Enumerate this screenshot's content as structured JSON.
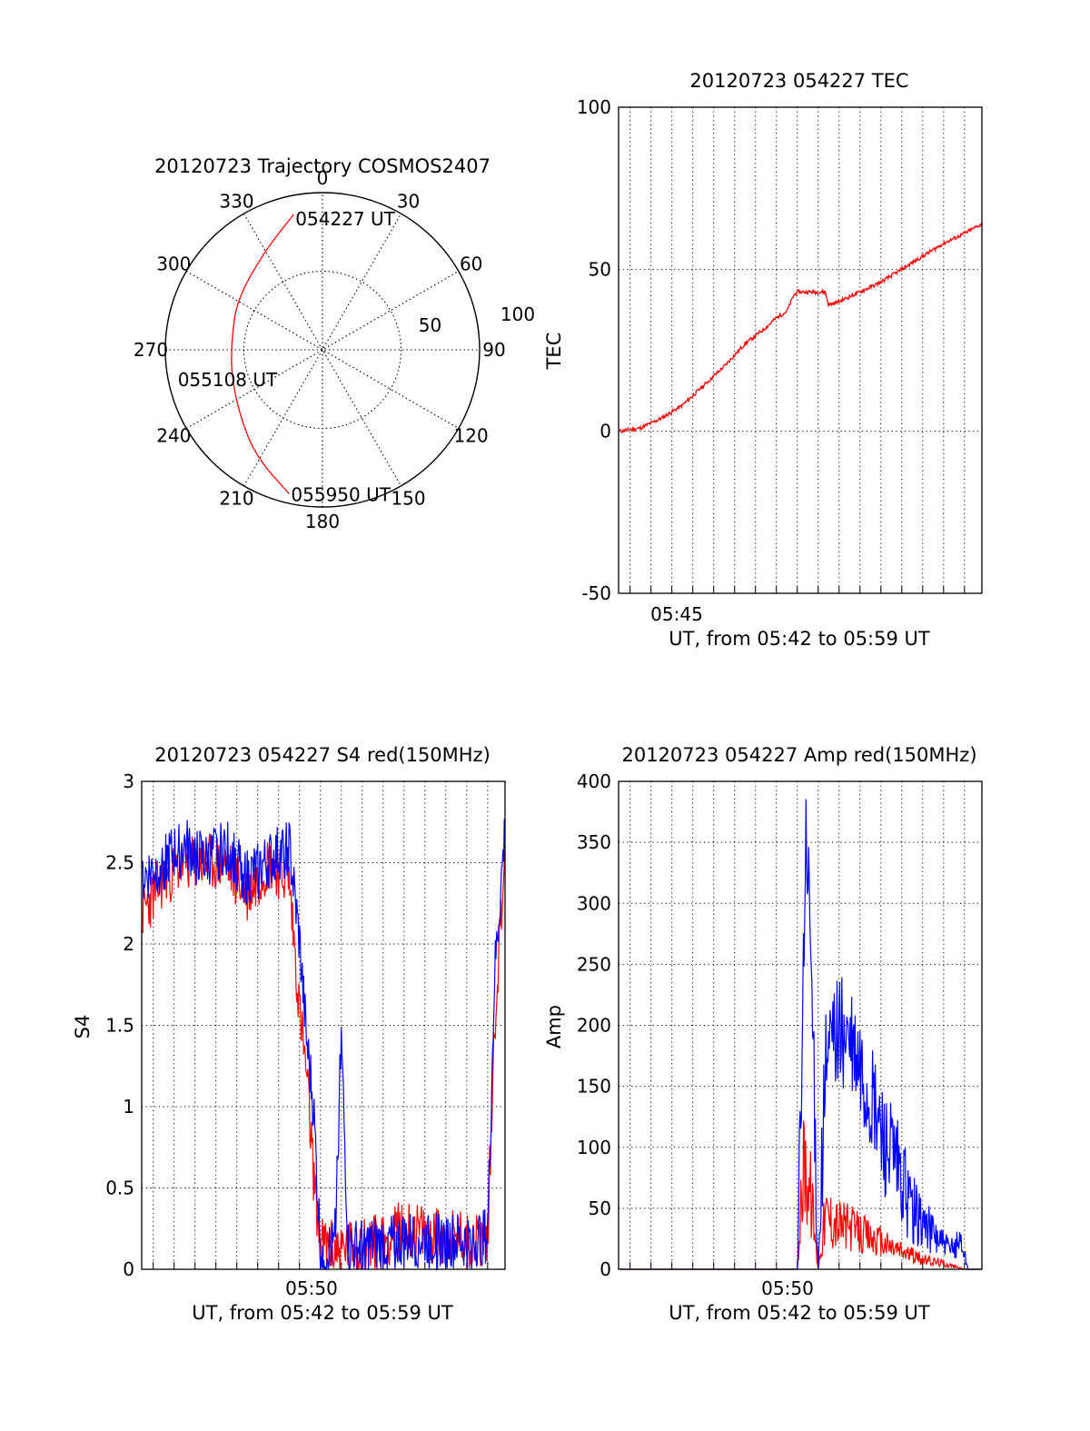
{
  "chart_data": [
    {
      "type": "polar",
      "title": "20120723 Trajectory COSMOS2407",
      "angle_labels": [
        "0",
        "30",
        "60",
        "90",
        "120",
        "150",
        "180",
        "210",
        "240",
        "270",
        "300",
        "330"
      ],
      "radial_labels": [
        "50",
        "100"
      ],
      "trajectory": {
        "color": "#ff0000",
        "points": [
          {
            "az": 348,
            "zen": 88,
            "label": "054227 UT"
          },
          {
            "az": 330,
            "zen": 73
          },
          {
            "az": 300,
            "zen": 63
          },
          {
            "az": 275,
            "zen": 58
          },
          {
            "az": 255,
            "zen": 60,
            "label": "055108 UT"
          },
          {
            "az": 232,
            "zen": 67
          },
          {
            "az": 212,
            "zen": 80
          },
          {
            "az": 193,
            "zen": 94,
            "label": "055950 UT"
          }
        ]
      },
      "time_labels": [
        "054227 UT",
        "055108 UT",
        "055950 UT"
      ]
    },
    {
      "type": "line",
      "title": "20120723 054227 TEC",
      "ylabel": "TEC",
      "xlabel": "UT, from 05:42 to 05:59 UT",
      "xlim": [
        "05:42:27",
        "05:59:50"
      ],
      "ylim": [
        -50,
        100
      ],
      "yticks": [
        "-50",
        "0",
        "50",
        "100"
      ],
      "xtick_label": "05:45",
      "grid": true,
      "series": [
        {
          "color": "#ff0000",
          "points": [
            [
              "05:42:30",
              0
            ],
            [
              "05:43:30",
              1
            ],
            [
              "05:44:30",
              4
            ],
            [
              "05:45:30",
              8
            ],
            [
              "05:46:30",
              14
            ],
            [
              "05:47:30",
              20
            ],
            [
              "05:48:30",
              27
            ],
            [
              "05:49:30",
              32
            ],
            [
              "05:50:00",
              35
            ],
            [
              "05:50:30",
              37
            ],
            [
              "05:50:50",
              42
            ],
            [
              "05:51:00",
              43
            ],
            [
              "05:52:20",
              43
            ],
            [
              "05:52:30",
              39
            ],
            [
              "05:53:00",
              40
            ],
            [
              "05:54:00",
              43
            ],
            [
              "05:55:00",
              46
            ],
            [
              "05:56:00",
              50
            ],
            [
              "05:57:00",
              54
            ],
            [
              "05:58:00",
              58
            ],
            [
              "05:59:00",
              61
            ],
            [
              "05:59:50",
              64
            ]
          ]
        }
      ]
    },
    {
      "type": "line",
      "title": "20120723 054227 S4 red(150MHz)",
      "ylabel": "S4",
      "xlabel": "UT, from 05:42 to 05:59 UT",
      "xlim": [
        "05:42:27",
        "05:59:50"
      ],
      "ylim": [
        0,
        3
      ],
      "yticks": [
        "0",
        "0.5",
        "1",
        "1.5",
        "2",
        "2.5",
        "3"
      ],
      "xtick_label": "05:50",
      "grid": true,
      "series": [
        {
          "color": "#ff0000",
          "points": [
            [
              "05:42:30",
              2.2
            ],
            [
              "05:43:30",
              2.4
            ],
            [
              "05:44:30",
              2.5
            ],
            [
              "05:45:30",
              2.5
            ],
            [
              "05:46:30",
              2.5
            ],
            [
              "05:47:30",
              2.3
            ],
            [
              "05:48:30",
              2.5
            ],
            [
              "05:49:30",
              2.4
            ],
            [
              "05:50:00",
              1.6
            ],
            [
              "05:50:20",
              1.2
            ],
            [
              "05:50:40",
              0.6
            ],
            [
              "05:51:00",
              0.15
            ],
            [
              "05:52:00",
              0.12
            ],
            [
              "05:53:00",
              0.15
            ],
            [
              "05:54:00",
              0.18
            ],
            [
              "05:55:00",
              0.25
            ],
            [
              "05:56:00",
              0.22
            ],
            [
              "05:57:00",
              0.2
            ],
            [
              "05:58:00",
              0.18
            ],
            [
              "05:59:00",
              0.2
            ],
            [
              "05:59:20",
              1.5
            ],
            [
              "05:59:50",
              2.6
            ]
          ]
        },
        {
          "color": "#0000ff",
          "points": [
            [
              "05:42:30",
              2.4
            ],
            [
              "05:43:30",
              2.5
            ],
            [
              "05:44:30",
              2.6
            ],
            [
              "05:45:30",
              2.5
            ],
            [
              "05:46:30",
              2.6
            ],
            [
              "05:47:30",
              2.4
            ],
            [
              "05:48:30",
              2.5
            ],
            [
              "05:49:30",
              2.6
            ],
            [
              "05:50:00",
              2.0
            ],
            [
              "05:50:20",
              1.4
            ],
            [
              "05:50:40",
              1.0
            ],
            [
              "05:51:00",
              0.12
            ],
            [
              "05:51:40",
              0.11
            ],
            [
              "05:52:00",
              1.4
            ],
            [
              "05:52:20",
              0.12
            ],
            [
              "05:53:00",
              0.13
            ],
            [
              "05:54:00",
              0.15
            ],
            [
              "05:55:00",
              0.17
            ],
            [
              "05:56:00",
              0.18
            ],
            [
              "05:57:00",
              0.17
            ],
            [
              "05:58:00",
              0.16
            ],
            [
              "05:59:00",
              0.2
            ],
            [
              "05:59:20",
              1.8
            ],
            [
              "05:59:50",
              2.7
            ]
          ]
        }
      ]
    },
    {
      "type": "line",
      "title": "20120723 054227 Amp red(150MHz)",
      "ylabel": "Amp",
      "xlabel": "UT, from 05:42 to 05:59 UT",
      "xlim": [
        "05:42:27",
        "05:59:50"
      ],
      "ylim": [
        0,
        400
      ],
      "yticks": [
        "0",
        "50",
        "100",
        "150",
        "200",
        "250",
        "300",
        "350",
        "400"
      ],
      "xtick_label": "05:50",
      "grid": true,
      "series": [
        {
          "color": "#ff0000",
          "points": [
            [
              "05:42:30",
              0
            ],
            [
              "05:51:00",
              0
            ],
            [
              "05:51:20",
              95
            ],
            [
              "05:51:40",
              60
            ],
            [
              "05:52:00",
              0
            ],
            [
              "05:52:20",
              45
            ],
            [
              "05:53:00",
              38
            ],
            [
              "05:54:00",
              30
            ],
            [
              "05:55:00",
              22
            ],
            [
              "05:56:00",
              15
            ],
            [
              "05:57:00",
              8
            ],
            [
              "05:58:00",
              5
            ],
            [
              "05:59:00",
              0
            ],
            [
              "05:59:50",
              0
            ]
          ]
        },
        {
          "color": "#0000ff",
          "points": [
            [
              "05:42:30",
              0
            ],
            [
              "05:51:00",
              0
            ],
            [
              "05:51:10",
              120
            ],
            [
              "05:51:25",
              350
            ],
            [
              "05:51:40",
              250
            ],
            [
              "05:52:00",
              0
            ],
            [
              "05:52:20",
              160
            ],
            [
              "05:52:50",
              200
            ],
            [
              "05:53:20",
              190
            ],
            [
              "05:54:00",
              160
            ],
            [
              "05:54:40",
              130
            ],
            [
              "05:55:20",
              100
            ],
            [
              "05:56:00",
              70
            ],
            [
              "05:56:40",
              45
            ],
            [
              "05:57:30",
              30
            ],
            [
              "05:58:20",
              15
            ],
            [
              "05:58:50",
              25
            ],
            [
              "05:59:10",
              0
            ],
            [
              "05:59:50",
              0
            ]
          ]
        }
      ]
    }
  ]
}
